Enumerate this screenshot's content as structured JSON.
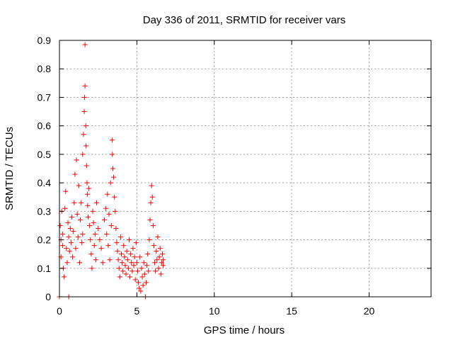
{
  "chart_data": {
    "type": "scatter",
    "title": "Day 336 of 2011, SRMTID for receiver vars",
    "xlabel": "GPS time / hours",
    "ylabel": "SRMTID / TECUs",
    "xlim": [
      0,
      24
    ],
    "ylim": [
      0,
      0.9
    ],
    "xticks": [
      0,
      5,
      10,
      15,
      20
    ],
    "yticks": [
      0,
      0.1,
      0.2,
      0.3,
      0.4,
      0.5,
      0.6,
      0.7,
      0.8,
      0.9
    ],
    "grid": true,
    "marker": "+",
    "color": "#ff0000",
    "series": [
      {
        "name": "SRMTID",
        "points": [
          [
            0.0,
            0.0
          ],
          [
            0.6,
            0.0
          ],
          [
            0.05,
            0.25
          ],
          [
            0.1,
            0.2
          ],
          [
            0.15,
            0.3
          ],
          [
            0.1,
            0.14
          ],
          [
            0.2,
            0.18
          ],
          [
            0.25,
            0.1
          ],
          [
            0.3,
            0.07
          ],
          [
            0.2,
            0.22
          ],
          [
            0.35,
            0.31
          ],
          [
            0.4,
            0.37
          ],
          [
            0.45,
            0.17
          ],
          [
            0.5,
            0.12
          ],
          [
            0.55,
            0.26
          ],
          [
            0.6,
            0.21
          ],
          [
            0.65,
            0.16
          ],
          [
            0.7,
            0.24
          ],
          [
            0.75,
            0.19
          ],
          [
            0.8,
            0.28
          ],
          [
            0.85,
            0.14
          ],
          [
            0.9,
            0.23
          ],
          [
            0.95,
            0.33
          ],
          [
            1.0,
            0.43
          ],
          [
            1.05,
            0.17
          ],
          [
            1.1,
            0.48
          ],
          [
            1.15,
            0.29
          ],
          [
            1.2,
            0.21
          ],
          [
            1.25,
            0.39
          ],
          [
            1.3,
            0.12
          ],
          [
            1.35,
            0.27
          ],
          [
            1.4,
            0.33
          ],
          [
            1.45,
            0.19
          ],
          [
            1.5,
            0.22
          ],
          [
            1.5,
            0.5
          ],
          [
            1.55,
            0.57
          ],
          [
            1.6,
            0.65
          ],
          [
            1.62,
            0.7
          ],
          [
            1.65,
            0.74
          ],
          [
            1.65,
            0.885
          ],
          [
            1.7,
            0.6
          ],
          [
            1.72,
            0.53
          ],
          [
            1.75,
            0.46
          ],
          [
            1.78,
            0.4
          ],
          [
            1.8,
            0.36
          ],
          [
            1.82,
            0.32
          ],
          [
            1.85,
            0.28
          ],
          [
            1.9,
            0.38
          ],
          [
            1.95,
            0.25
          ],
          [
            2.0,
            0.2
          ],
          [
            2.05,
            0.15
          ],
          [
            2.1,
            0.1
          ],
          [
            2.15,
            0.3
          ],
          [
            2.2,
            0.26
          ],
          [
            2.25,
            0.18
          ],
          [
            2.3,
            0.22
          ],
          [
            2.35,
            0.13
          ],
          [
            2.4,
            0.33
          ],
          [
            2.5,
            0.24
          ],
          [
            2.6,
            0.2
          ],
          [
            2.7,
            0.17
          ],
          [
            2.8,
            0.12
          ],
          [
            2.9,
            0.27
          ],
          [
            3.0,
            0.31
          ],
          [
            3.05,
            0.22
          ],
          [
            3.1,
            0.36
          ],
          [
            3.15,
            0.18
          ],
          [
            3.2,
            0.29
          ],
          [
            3.25,
            0.13
          ],
          [
            3.3,
            0.4
          ],
          [
            3.35,
            0.25
          ],
          [
            3.4,
            0.55
          ],
          [
            3.42,
            0.5
          ],
          [
            3.45,
            0.45
          ],
          [
            3.5,
            0.42
          ],
          [
            3.55,
            0.35
          ],
          [
            3.6,
            0.3
          ],
          [
            3.65,
            0.24
          ],
          [
            3.7,
            0.19
          ],
          [
            3.75,
            0.16
          ],
          [
            3.8,
            0.13
          ],
          [
            3.85,
            0.1
          ],
          [
            3.9,
            0.07
          ],
          [
            3.95,
            0.21
          ],
          [
            4.0,
            0.15
          ],
          [
            4.05,
            0.12
          ],
          [
            4.1,
            0.09
          ],
          [
            4.15,
            0.18
          ],
          [
            4.2,
            0.14
          ],
          [
            4.25,
            0.11
          ],
          [
            4.3,
            0.08
          ],
          [
            4.35,
            0.16
          ],
          [
            4.4,
            0.13
          ],
          [
            4.45,
            0.1
          ],
          [
            4.5,
            0.2
          ],
          [
            4.55,
            0.07
          ],
          [
            4.6,
            0.15
          ],
          [
            4.65,
            0.12
          ],
          [
            4.7,
            0.09
          ],
          [
            4.75,
            0.17
          ],
          [
            4.8,
            0.11
          ],
          [
            4.85,
            0.14
          ],
          [
            4.9,
            0.06
          ],
          [
            4.95,
            0.19
          ],
          [
            5.0,
            0.12
          ],
          [
            5.05,
            0.09
          ],
          [
            5.1,
            0.05
          ],
          [
            5.15,
            0.03
          ],
          [
            5.2,
            0.14
          ],
          [
            5.25,
            0.02
          ],
          [
            5.3,
            0.1
          ],
          [
            5.35,
            0.07
          ],
          [
            5.4,
            0.04
          ],
          [
            5.45,
            0.12
          ],
          [
            5.5,
            0.08
          ],
          [
            5.55,
            0.0
          ],
          [
            5.6,
            0.05
          ],
          [
            5.65,
            0.11
          ],
          [
            5.7,
            0.15
          ],
          [
            5.75,
            0.09
          ],
          [
            5.8,
            0.2
          ],
          [
            5.85,
            0.27
          ],
          [
            5.9,
            0.33
          ],
          [
            5.95,
            0.39
          ],
          [
            6.0,
            0.35
          ],
          [
            6.05,
            0.25
          ],
          [
            6.1,
            0.18
          ],
          [
            6.15,
            0.12
          ],
          [
            6.2,
            0.09
          ],
          [
            6.25,
            0.16
          ],
          [
            6.3,
            0.13
          ],
          [
            6.35,
            0.21
          ],
          [
            6.4,
            0.1
          ],
          [
            6.45,
            0.14
          ],
          [
            6.5,
            0.17
          ],
          [
            6.55,
            0.08
          ],
          [
            6.6,
            0.12
          ],
          [
            6.65,
            0.15
          ],
          [
            6.7,
            0.11
          ],
          [
            6.7,
            0.13
          ]
        ]
      }
    ]
  }
}
